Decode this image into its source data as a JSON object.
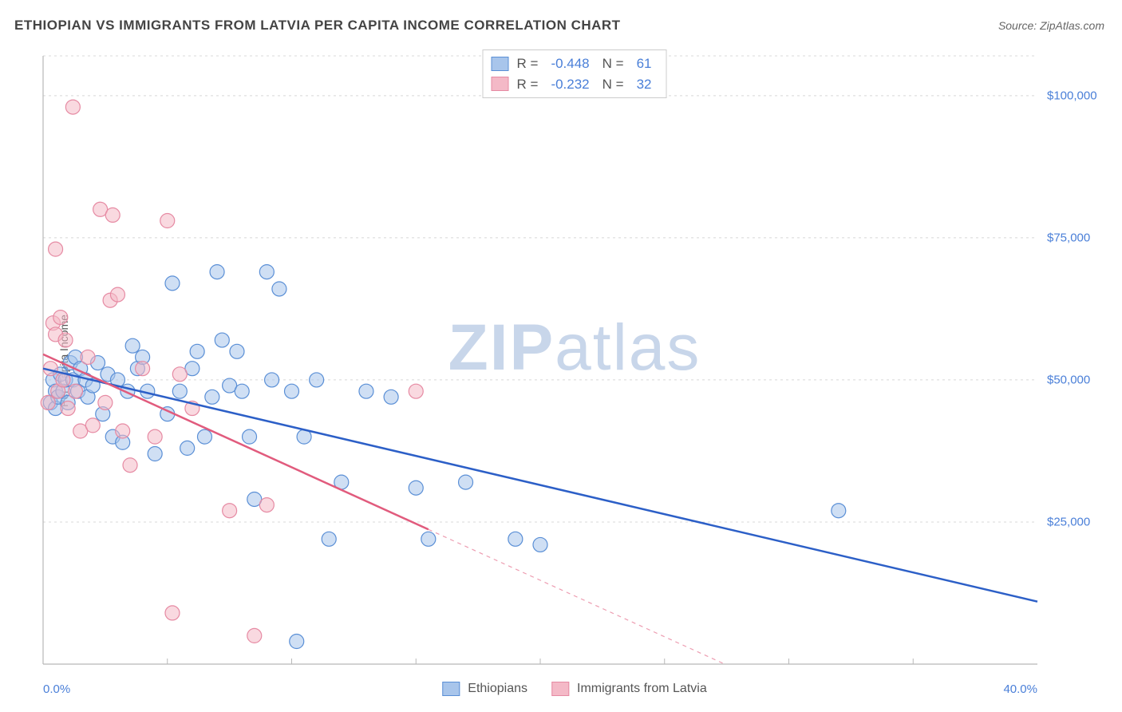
{
  "title": "ETHIOPIAN VS IMMIGRANTS FROM LATVIA PER CAPITA INCOME CORRELATION CHART",
  "source": "Source: ZipAtlas.com",
  "watermark_bold": "ZIP",
  "watermark_light": "atlas",
  "chart": {
    "type": "scatter",
    "background_color": "#ffffff",
    "grid_color": "#d8d8d8",
    "axis_color": "#b8b8b8",
    "text_color": "#555555",
    "value_color": "#4a7fd8",
    "ylabel": "Per Capita Income",
    "xlim": [
      0,
      40
    ],
    "ylim": [
      0,
      107000
    ],
    "x_ticks": [
      0,
      40
    ],
    "x_tick_labels": [
      "0.0%",
      "40.0%"
    ],
    "x_minor_ticks": [
      5,
      10,
      15,
      20,
      25,
      30,
      35
    ],
    "y_ticks": [
      25000,
      50000,
      75000,
      100000
    ],
    "y_tick_labels": [
      "$25,000",
      "$50,000",
      "$75,000",
      "$100,000"
    ],
    "y_grid": [
      25000,
      50000,
      75000,
      100000,
      107000
    ],
    "marker_radius": 9,
    "marker_stroke_width": 1.2,
    "trend_line_width": 2.5,
    "series": [
      {
        "name": "Ethiopians",
        "fill_color": "#a8c5eb",
        "stroke_color": "#5a8fd6",
        "fill_opacity": 0.55,
        "trend_color": "#2c5fc7",
        "R": "-0.448",
        "N": "61",
        "trend": {
          "x1": 0,
          "y1": 52000,
          "x2": 40,
          "y2": 11000,
          "solid_to_x": 40
        },
        "points": [
          [
            0.3,
            46000
          ],
          [
            0.4,
            50000
          ],
          [
            0.5,
            45000
          ],
          [
            0.5,
            48000
          ],
          [
            0.6,
            47000
          ],
          [
            0.7,
            51000
          ],
          [
            0.8,
            48000
          ],
          [
            0.9,
            50000
          ],
          [
            1.0,
            46000
          ],
          [
            1.1,
            53000
          ],
          [
            1.2,
            50000
          ],
          [
            1.3,
            54000
          ],
          [
            1.4,
            48000
          ],
          [
            1.5,
            52000
          ],
          [
            1.7,
            50000
          ],
          [
            1.8,
            47000
          ],
          [
            2.0,
            49000
          ],
          [
            2.2,
            53000
          ],
          [
            2.4,
            44000
          ],
          [
            2.6,
            51000
          ],
          [
            2.8,
            40000
          ],
          [
            3.0,
            50000
          ],
          [
            3.2,
            39000
          ],
          [
            3.4,
            48000
          ],
          [
            3.6,
            56000
          ],
          [
            3.8,
            52000
          ],
          [
            4.0,
            54000
          ],
          [
            4.2,
            48000
          ],
          [
            4.5,
            37000
          ],
          [
            5.0,
            44000
          ],
          [
            5.2,
            67000
          ],
          [
            5.5,
            48000
          ],
          [
            5.8,
            38000
          ],
          [
            6.0,
            52000
          ],
          [
            6.2,
            55000
          ],
          [
            6.5,
            40000
          ],
          [
            6.8,
            47000
          ],
          [
            7.0,
            69000
          ],
          [
            7.2,
            57000
          ],
          [
            7.5,
            49000
          ],
          [
            7.8,
            55000
          ],
          [
            8.0,
            48000
          ],
          [
            8.3,
            40000
          ],
          [
            8.5,
            29000
          ],
          [
            9.0,
            69000
          ],
          [
            9.2,
            50000
          ],
          [
            9.5,
            66000
          ],
          [
            10.0,
            48000
          ],
          [
            10.2,
            4000
          ],
          [
            10.5,
            40000
          ],
          [
            11.0,
            50000
          ],
          [
            11.5,
            22000
          ],
          [
            12.0,
            32000
          ],
          [
            13.0,
            48000
          ],
          [
            14.0,
            47000
          ],
          [
            15.0,
            31000
          ],
          [
            15.5,
            22000
          ],
          [
            17.0,
            32000
          ],
          [
            19.0,
            22000
          ],
          [
            20.0,
            21000
          ],
          [
            32.0,
            27000
          ]
        ]
      },
      {
        "name": "Immigrants from Latvia",
        "fill_color": "#f4b9c7",
        "stroke_color": "#e68aa3",
        "fill_opacity": 0.55,
        "trend_color": "#e15b7d",
        "R": "-0.232",
        "N": "32",
        "trend": {
          "x1": 0,
          "y1": 54500,
          "x2": 40,
          "y2": -25000,
          "solid_to_x": 15.5
        },
        "points": [
          [
            0.2,
            46000
          ],
          [
            0.3,
            52000
          ],
          [
            0.4,
            60000
          ],
          [
            0.5,
            58000
          ],
          [
            0.5,
            73000
          ],
          [
            0.6,
            48000
          ],
          [
            0.7,
            61000
          ],
          [
            0.8,
            50000
          ],
          [
            0.9,
            57000
          ],
          [
            1.0,
            45000
          ],
          [
            1.2,
            98000
          ],
          [
            1.3,
            48000
          ],
          [
            1.5,
            41000
          ],
          [
            1.8,
            54000
          ],
          [
            2.0,
            42000
          ],
          [
            2.3,
            80000
          ],
          [
            2.5,
            46000
          ],
          [
            2.7,
            64000
          ],
          [
            2.8,
            79000
          ],
          [
            3.0,
            65000
          ],
          [
            3.2,
            41000
          ],
          [
            3.5,
            35000
          ],
          [
            4.0,
            52000
          ],
          [
            4.5,
            40000
          ],
          [
            5.0,
            78000
          ],
          [
            5.2,
            9000
          ],
          [
            5.5,
            51000
          ],
          [
            6.0,
            45000
          ],
          [
            7.5,
            27000
          ],
          [
            8.5,
            5000
          ],
          [
            9.0,
            28000
          ],
          [
            15.0,
            48000
          ]
        ]
      }
    ],
    "legend": [
      {
        "label": "Ethiopians",
        "fill": "#a8c5eb",
        "stroke": "#5a8fd6"
      },
      {
        "label": "Immigrants from Latvia",
        "fill": "#f4b9c7",
        "stroke": "#e68aa3"
      }
    ]
  }
}
